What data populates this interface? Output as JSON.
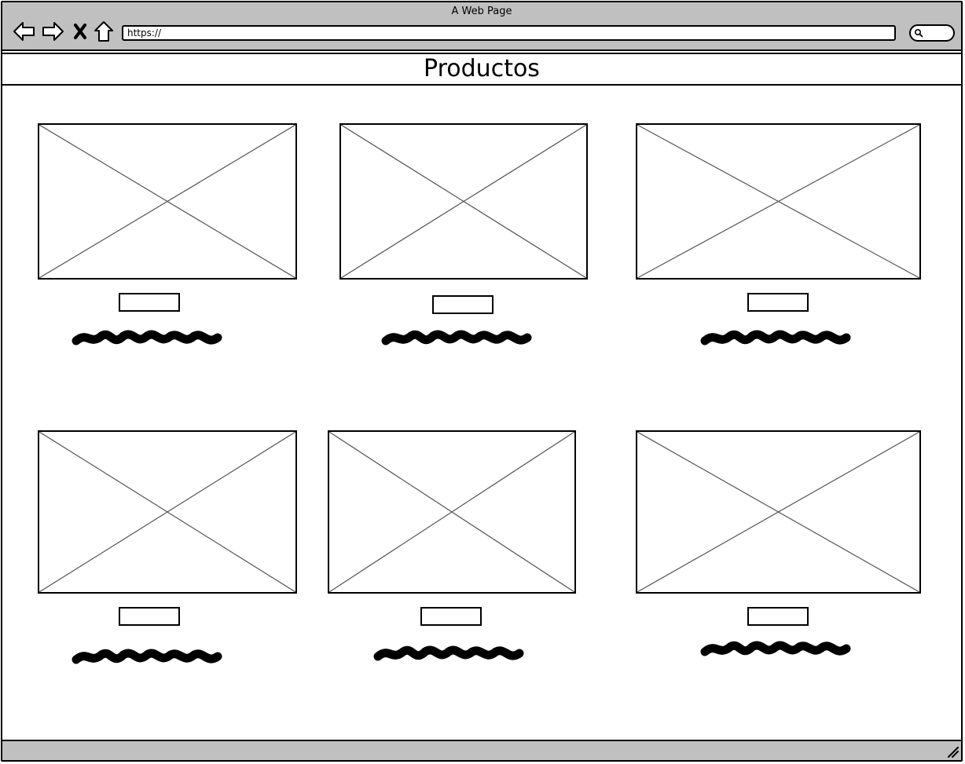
{
  "window": {
    "title": "A Web Page"
  },
  "navigation": {
    "back_icon": "back-arrow-icon",
    "forward_icon": "forward-arrow-icon",
    "close_icon": "x-icon",
    "home_icon": "home-icon"
  },
  "address_bar": {
    "value": "https://"
  },
  "search": {
    "icon": "magnifier-icon"
  },
  "page": {
    "title": "Productos"
  },
  "products": [
    {
      "image": "placeholder-image",
      "button_label": "",
      "caption": "scribbled-text"
    },
    {
      "image": "placeholder-image",
      "button_label": "",
      "caption": "scribbled-text"
    },
    {
      "image": "placeholder-image",
      "button_label": "",
      "caption": "scribbled-text"
    },
    {
      "image": "placeholder-image",
      "button_label": "",
      "caption": "scribbled-text"
    },
    {
      "image": "placeholder-image",
      "button_label": "",
      "caption": "scribbled-text"
    },
    {
      "image": "placeholder-image",
      "button_label": "",
      "caption": "scribbled-text"
    }
  ]
}
